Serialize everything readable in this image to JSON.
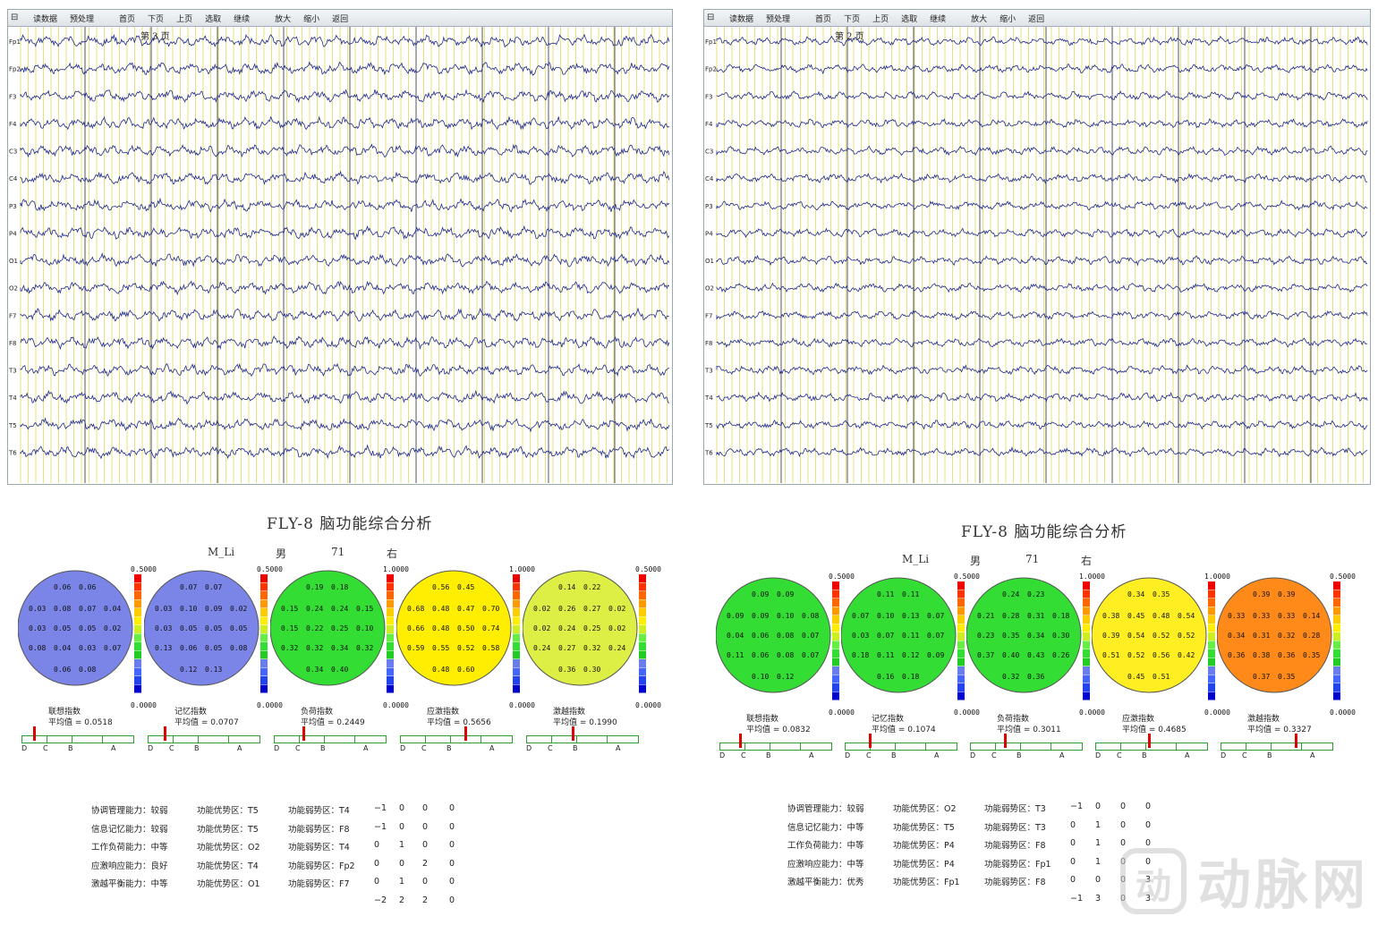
{
  "toolbar": {
    "items": [
      "读数据",
      "预处理",
      "首页",
      "下页",
      "上页",
      "选取",
      "继续",
      "放大",
      "缩小",
      "返回"
    ]
  },
  "colors": {
    "trace": "#1f2a8a",
    "grid_yellow": "#e8e07a",
    "grid_dark": "#555555",
    "scale": [
      "#0000cc",
      "#2244ee",
      "#4466ff",
      "#6a7dee",
      "#22cc22",
      "#33dd33",
      "#66ee44",
      "#ccee22",
      "#ffee00",
      "#ffcc00",
      "#ff9900",
      "#ff6600",
      "#ff3300",
      "#ee0000"
    ]
  },
  "left": {
    "page_label": "第 3 页",
    "channels": [
      "Fp1",
      "Fp2",
      "F3",
      "F4",
      "C3",
      "C4",
      "P3",
      "P4",
      "O1",
      "O2",
      "F7",
      "F8",
      "T3",
      "T4",
      "T5",
      "T6"
    ],
    "report_title": "FLY-8  脑功能综合分析",
    "patient": {
      "name": "M_Li",
      "sex": "男",
      "age": "71",
      "hand": "右"
    },
    "maps": [
      {
        "name": "联想指数",
        "avg": "平均值 = 0.0518",
        "max": "0.5000",
        "min": "0.0000",
        "marker": 0.1,
        "rows": [
          [
            "0.06",
            "0.06"
          ],
          [
            "0.03",
            "0.08",
            "0.07",
            "0.04"
          ],
          [
            "0.03",
            "0.05",
            "0.05",
            "0.02"
          ],
          [
            "0.08",
            "0.04",
            "0.03",
            "0.07"
          ],
          [
            "0.06",
            "0.08"
          ]
        ],
        "regions": [
          {
            "c": "#7b85e8"
          }
        ]
      },
      {
        "name": "记忆指数",
        "avg": "平均值 = 0.0707",
        "max": "0.5000",
        "min": "0.0000",
        "marker": 0.14,
        "rows": [
          [
            "0.07",
            "0.07"
          ],
          [
            "0.03",
            "0.10",
            "0.09",
            "0.02"
          ],
          [
            "0.03",
            "0.05",
            "0.05",
            "0.05"
          ],
          [
            "0.13",
            "0.06",
            "0.05",
            "0.08"
          ],
          [
            "0.12",
            "0.13"
          ]
        ],
        "regions": [
          {
            "c": "#7b85e8"
          }
        ]
      },
      {
        "name": "负荷指数",
        "avg": "平均值 = 0.2449",
        "max": "1.0000",
        "min": "0.0000",
        "marker": 0.25,
        "rows": [
          [
            "0.19",
            "0.18"
          ],
          [
            "0.15",
            "0.24",
            "0.24",
            "0.15"
          ],
          [
            "0.15",
            "0.22",
            "0.25",
            "0.10"
          ],
          [
            "0.32",
            "0.32",
            "0.34",
            "0.32"
          ],
          [
            "0.34",
            "0.40"
          ]
        ],
        "regions": [
          {
            "c": "#33dd33"
          }
        ]
      },
      {
        "name": "应激指数",
        "avg": "平均值 = 0.5656",
        "max": "1.0000",
        "min": "0.0000",
        "marker": 0.57,
        "rows": [
          [
            "0.56",
            "0.45"
          ],
          [
            "0.68",
            "0.48",
            "0.47",
            "0.70"
          ],
          [
            "0.66",
            "0.48",
            "0.50",
            "0.74"
          ],
          [
            "0.59",
            "0.55",
            "0.52",
            "0.58"
          ],
          [
            "0.48",
            "0.60"
          ]
        ],
        "regions": [
          {
            "c": "#ffee00"
          }
        ]
      },
      {
        "name": "激越指数",
        "avg": "平均值 = 0.1990",
        "max": "0.5000",
        "min": "0.0000",
        "marker": 0.4,
        "rows": [
          [
            "0.14",
            "0.22"
          ],
          [
            "0.02",
            "0.26",
            "0.27",
            "0.02"
          ],
          [
            "0.02",
            "0.24",
            "0.25",
            "0.02"
          ],
          [
            "0.24",
            "0.27",
            "0.32",
            "0.24"
          ],
          [
            "0.36",
            "0.30"
          ]
        ],
        "regions": [
          {
            "c": "#ddee44"
          }
        ]
      }
    ],
    "grade_letters": [
      "D",
      "C",
      "B",
      "A"
    ],
    "summary": [
      [
        "协调管理能力：较弱",
        "功能优势区：T5",
        "功能弱势区：T4",
        "−1",
        "0",
        "0",
        "0"
      ],
      [
        "信息记忆能力：较弱",
        "功能优势区：T5",
        "功能弱势区：F8",
        "−1",
        "0",
        "0",
        "0"
      ],
      [
        "工作负荷能力：中等",
        "功能优势区：O2",
        "功能弱势区：T4",
        "0",
        "1",
        "0",
        "0"
      ],
      [
        "应激响应能力：良好",
        "功能优势区：T4",
        "功能弱势区：Fp2",
        "0",
        "0",
        "2",
        "0"
      ],
      [
        "激越平衡能力：中等",
        "功能优势区：O1",
        "功能弱势区：F7",
        "0",
        "1",
        "0",
        "0"
      ],
      [
        "",
        "",
        "",
        "−2",
        "2",
        "2",
        "0"
      ]
    ]
  },
  "right": {
    "page_label": "第 2 页",
    "channels": [
      "Fp1",
      "Fp2",
      "F3",
      "F4",
      "C3",
      "C4",
      "P3",
      "P4",
      "O1",
      "O2",
      "F7",
      "F8",
      "T3",
      "T4",
      "T5",
      "T6"
    ],
    "report_title": "FLY-8  脑功能综合分析",
    "patient": {
      "name": "M_Li",
      "sex": "男",
      "age": "71",
      "hand": "右"
    },
    "maps": [
      {
        "name": "联想指数",
        "avg": "平均值 = 0.0832",
        "max": "0.5000",
        "min": "0.0000",
        "marker": 0.17,
        "rows": [
          [
            "0.09",
            "0.09"
          ],
          [
            "0.09",
            "0.09",
            "0.10",
            "0.08"
          ],
          [
            "0.04",
            "0.06",
            "0.08",
            "0.07"
          ],
          [
            "0.11",
            "0.06",
            "0.08",
            "0.07"
          ],
          [
            "0.10",
            "0.12"
          ]
        ],
        "regions": [
          {
            "c": "#33dd33"
          }
        ]
      },
      {
        "name": "记忆指数",
        "avg": "平均值 = 0.1074",
        "max": "0.5000",
        "min": "0.0000",
        "marker": 0.21,
        "rows": [
          [
            "0.11",
            "0.11"
          ],
          [
            "0.07",
            "0.10",
            "0.13",
            "0.07"
          ],
          [
            "0.03",
            "0.07",
            "0.11",
            "0.07"
          ],
          [
            "0.18",
            "0.11",
            "0.12",
            "0.09"
          ],
          [
            "0.16",
            "0.18"
          ]
        ],
        "regions": [
          {
            "c": "#33dd33"
          }
        ]
      },
      {
        "name": "负荷指数",
        "avg": "平均值 = 0.3011",
        "max": "1.0000",
        "min": "0.0000",
        "marker": 0.3,
        "rows": [
          [
            "0.24",
            "0.23"
          ],
          [
            "0.21",
            "0.28",
            "0.31",
            "0.18"
          ],
          [
            "0.23",
            "0.35",
            "0.34",
            "0.30"
          ],
          [
            "0.37",
            "0.40",
            "0.43",
            "0.26"
          ],
          [
            "0.32",
            "0.36"
          ]
        ],
        "regions": [
          {
            "c": "#33dd33"
          }
        ]
      },
      {
        "name": "应激指数",
        "avg": "平均值 = 0.4685",
        "max": "1.0000",
        "min": "0.0000",
        "marker": 0.47,
        "rows": [
          [
            "0.34",
            "0.35"
          ],
          [
            "0.38",
            "0.45",
            "0.48",
            "0.54"
          ],
          [
            "0.39",
            "0.54",
            "0.52",
            "0.52"
          ],
          [
            "0.51",
            "0.52",
            "0.56",
            "0.42"
          ],
          [
            "0.45",
            "0.51"
          ]
        ],
        "regions": [
          {
            "c": "#ffee22"
          }
        ]
      },
      {
        "name": "激越指数",
        "avg": "平均值 = 0.3327",
        "max": "0.5000",
        "min": "0.0000",
        "marker": 0.66,
        "rows": [
          [
            "0.39",
            "0.39"
          ],
          [
            "0.33",
            "0.33",
            "0.33",
            "0.14"
          ],
          [
            "0.34",
            "0.31",
            "0.32",
            "0.28"
          ],
          [
            "0.36",
            "0.38",
            "0.36",
            "0.35"
          ],
          [
            "0.37",
            "0.35"
          ]
        ],
        "regions": [
          {
            "c": "#ff8a1a"
          }
        ]
      }
    ],
    "grade_letters": [
      "D",
      "C",
      "B",
      "A"
    ],
    "summary": [
      [
        "协调管理能力：较弱",
        "功能优势区：O2",
        "功能弱势区：T3",
        "−1",
        "0",
        "0",
        "0"
      ],
      [
        "信息记忆能力：中等",
        "功能优势区：T5",
        "功能弱势区：T3",
        "0",
        "1",
        "0",
        "0"
      ],
      [
        "工作负荷能力：中等",
        "功能优势区：P4",
        "功能弱势区：F8",
        "0",
        "1",
        "0",
        "0"
      ],
      [
        "应激响应能力：中等",
        "功能优势区：P4",
        "功能弱势区：Fp1",
        "0",
        "1",
        "0",
        "0"
      ],
      [
        "激越平衡能力：优秀",
        "功能优势区：Fp1",
        "功能弱势区：F8",
        "0",
        "0",
        "0",
        "3"
      ],
      [
        "",
        "",
        "",
        "−1",
        "3",
        "0",
        "3"
      ]
    ]
  },
  "watermark": {
    "logo": "动",
    "text": "动脉网"
  }
}
